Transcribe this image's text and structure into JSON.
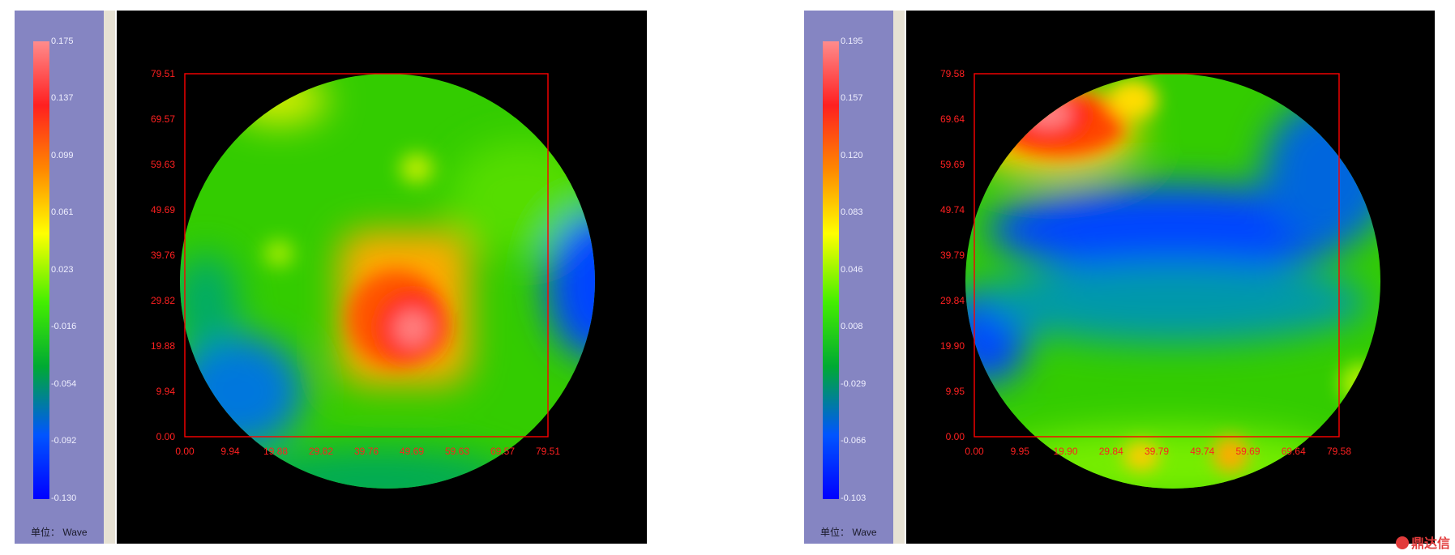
{
  "watermark": "鼎达信",
  "chart_data": [
    {
      "type": "heatmap",
      "title": "",
      "colorbar": {
        "ticks": [
          "0.175",
          "0.137",
          "0.099",
          "0.061",
          "0.023",
          "-0.016",
          "-0.054",
          "-0.092",
          "-0.130"
        ],
        "unit_label": "单位： Wave"
      },
      "x_ticks": [
        "0.00",
        "9.94",
        "19.88",
        "29.82",
        "39.76",
        "49.69",
        "59.63",
        "69.57",
        "79.51"
      ],
      "y_ticks": [
        "0.00",
        "9.94",
        "19.88",
        "29.82",
        "39.76",
        "49.69",
        "59.63",
        "69.57",
        "79.51"
      ],
      "xlim": [
        0,
        79.51
      ],
      "ylim": [
        0,
        79.51
      ],
      "grid": false,
      "description_features": [
        {
          "x": 49.69,
          "y": 23.0,
          "value": 0.175
        },
        {
          "x": 42.0,
          "y": 29.0,
          "value": 0.1
        },
        {
          "x": 20.0,
          "y": 75.0,
          "value": 0.04
        },
        {
          "x": 50.0,
          "y": 60.0,
          "value": 0.04
        }
      ]
    },
    {
      "type": "heatmap",
      "title": "",
      "colorbar": {
        "ticks": [
          "0.195",
          "0.157",
          "0.120",
          "0.083",
          "0.046",
          "0.008",
          "-0.029",
          "-0.066",
          "-0.103"
        ],
        "unit_label": "单位： Wave"
      },
      "x_ticks": [
        "0.00",
        "9.95",
        "19.90",
        "29.84",
        "39.79",
        "49.74",
        "59.69",
        "69.64",
        "79.58"
      ],
      "y_ticks": [
        "0.00",
        "9.95",
        "19.90",
        "29.84",
        "39.79",
        "49.74",
        "59.69",
        "69.64",
        "79.58"
      ],
      "xlim": [
        0,
        79.58
      ],
      "ylim": [
        0,
        79.58
      ],
      "grid": false,
      "description_features": [
        {
          "x": 16.0,
          "y": 72.0,
          "value": 0.195
        },
        {
          "x": 27.0,
          "y": 66.0,
          "value": 0.1
        },
        {
          "x": 37.0,
          "y": 48.0,
          "value": -0.06
        },
        {
          "x": 36.0,
          "y": 6.0,
          "value": 0.06
        }
      ]
    }
  ]
}
